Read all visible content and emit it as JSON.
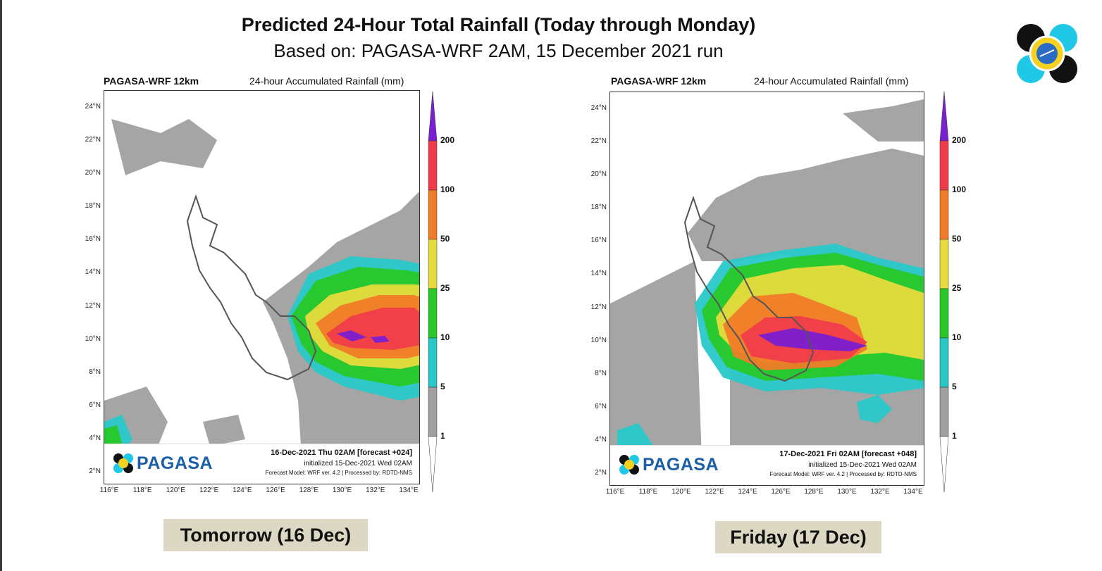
{
  "header": {
    "title": "Predicted 24-Hour Total Rainfall (Today through Monday)",
    "subtitle": "Based on: PAGASA-WRF 2AM, 15 December 2021 run"
  },
  "legend": {
    "levels": [
      "200",
      "100",
      "50",
      "25",
      "10",
      "5",
      "1"
    ],
    "colors": {
      "over": "#7a1fd1",
      "r100_200": "#f03c4a",
      "r50_100": "#f07c28",
      "r25_50": "#e6dc3c",
      "r10_25": "#28c828",
      "r5_10": "#28c8c8",
      "r1_5": "#a0a0a0"
    }
  },
  "axes": {
    "lat_labels": [
      "24°N",
      "22°N",
      "20°N",
      "18°N",
      "16°N",
      "14°N",
      "12°N",
      "10°N",
      "8°N",
      "6°N",
      "4°N",
      "2°N"
    ],
    "lon_labels": [
      "116°E",
      "118°E",
      "120°E",
      "122°E",
      "124°E",
      "126°E",
      "128°E",
      "130°E",
      "132°E",
      "134°E"
    ]
  },
  "panels": [
    {
      "model": "PAGASA-WRF 12km",
      "units": "24-hour Accumulated Rainfall (mm)",
      "brand": "PAGASA",
      "valid": "16-Dec-2021 Thu 02AM [forecast +024]",
      "initialized": "initialized 15-Dec-2021 Wed 02AM",
      "model_info": "Forecast Model: WRF ver. 4.2 | Processed by: RDTD-NMS",
      "caption": "Tomorrow (16 Dec)"
    },
    {
      "model": "PAGASA-WRF 12km",
      "units": "24-hour Accumulated Rainfall (mm)",
      "brand": "PAGASA",
      "valid": "17-Dec-2021 Fri 02AM [forecast +048]",
      "initialized": "initialized 15-Dec-2021 Wed 02AM",
      "model_info": "Forecast Model: WRF ver. 4.2 | Processed by: RDTD-NMS",
      "caption": "Friday (17 Dec)"
    }
  ]
}
